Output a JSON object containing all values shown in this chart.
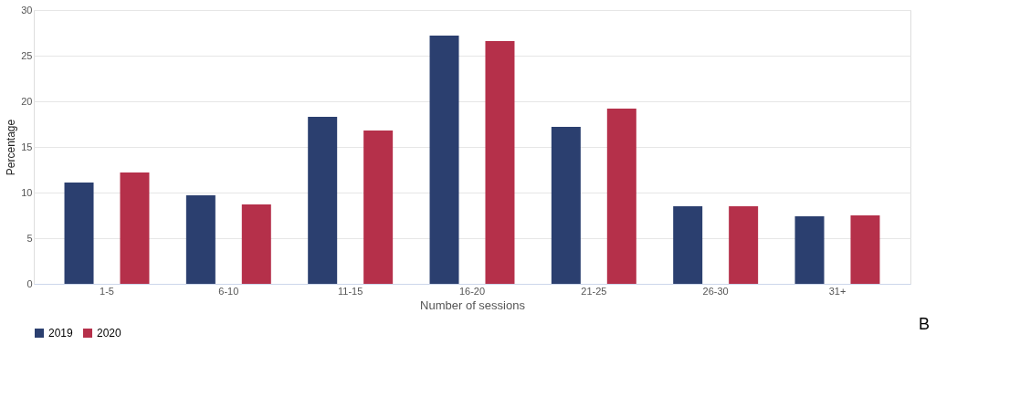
{
  "chart_data": {
    "type": "bar",
    "xlabel": "Number of sessions",
    "ylabel": "Percentage",
    "categories": [
      "1-5",
      "6-10",
      "11-15",
      "16-20",
      "21-25",
      "26-30",
      "31+"
    ],
    "series": [
      {
        "name": "2019",
        "color": "#2b3f6f",
        "values": [
          11.1,
          9.7,
          18.3,
          27.2,
          17.2,
          8.5,
          7.4
        ]
      },
      {
        "name": "2020",
        "color": "#b5304a",
        "values": [
          12.2,
          8.7,
          16.8,
          26.6,
          19.2,
          8.5,
          7.5
        ]
      }
    ],
    "ylim": [
      0,
      30
    ],
    "yticks": [
      0,
      5,
      10,
      15,
      20,
      25,
      30
    ],
    "grid": "y",
    "legend": "bottom",
    "annotations": [
      "B"
    ]
  }
}
